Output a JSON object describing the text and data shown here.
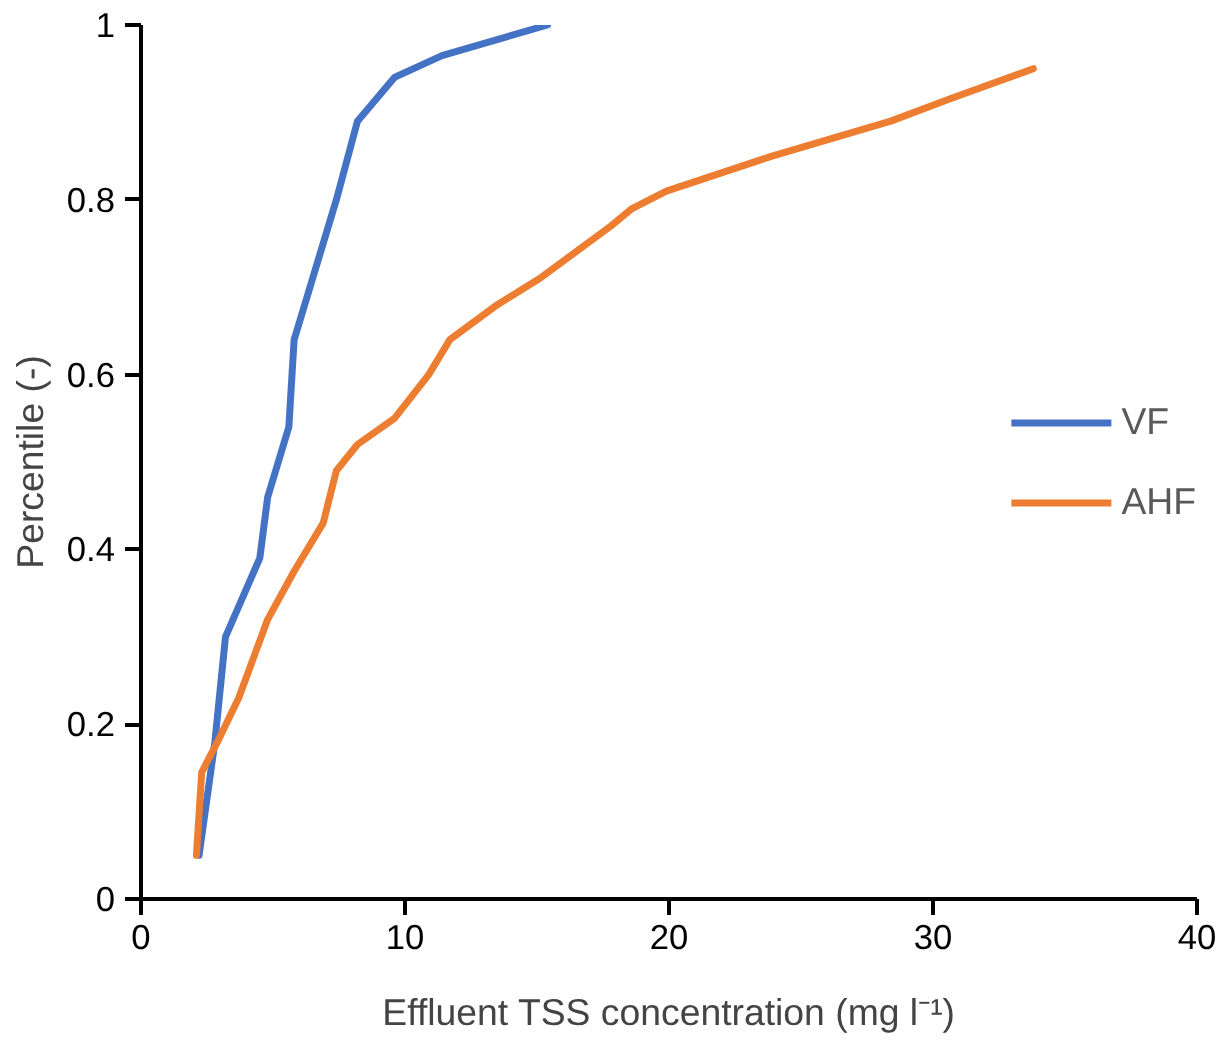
{
  "chart_data": {
    "type": "line",
    "xlabel": "Effluent TSS concentration (mg l⁻¹)",
    "ylabel": "Percentile (-)",
    "xlim": [
      0,
      40
    ],
    "xticks": [
      0,
      10,
      20,
      30,
      40
    ],
    "ylim": [
      0,
      1
    ],
    "yticks": [
      0,
      0.2,
      0.4,
      0.6,
      0.8,
      1
    ],
    "grid": false,
    "legend": "right",
    "marker": "none",
    "line_style": "solid",
    "series": [
      {
        "name": "VF",
        "color": "#4472c4",
        "x": [
          2.2,
          2.8,
          3.2,
          4.5,
          4.8,
          5.6,
          5.8,
          6.4,
          7.4,
          8.2,
          9.6,
          11.4,
          15.4
        ],
        "values": [
          0.05,
          0.18,
          0.3,
          0.39,
          0.46,
          0.54,
          0.64,
          0.7,
          0.8,
          0.89,
          0.94,
          0.965,
          1.0
        ]
      },
      {
        "name": "AHF",
        "color": "#ed7d31",
        "x": [
          2.1,
          2.3,
          2.9,
          3.7,
          4.8,
          5.8,
          6.9,
          7.4,
          8.2,
          9.6,
          10.9,
          11.7,
          13.5,
          15.1,
          17.8,
          18.6,
          19.9,
          23.9,
          28.4,
          30.6,
          33.8
        ],
        "values": [
          0.05,
          0.145,
          0.18,
          0.23,
          0.32,
          0.375,
          0.43,
          0.49,
          0.52,
          0.55,
          0.6,
          0.64,
          0.68,
          0.71,
          0.77,
          0.79,
          0.81,
          0.85,
          0.89,
          0.915,
          0.95
        ]
      }
    ]
  }
}
